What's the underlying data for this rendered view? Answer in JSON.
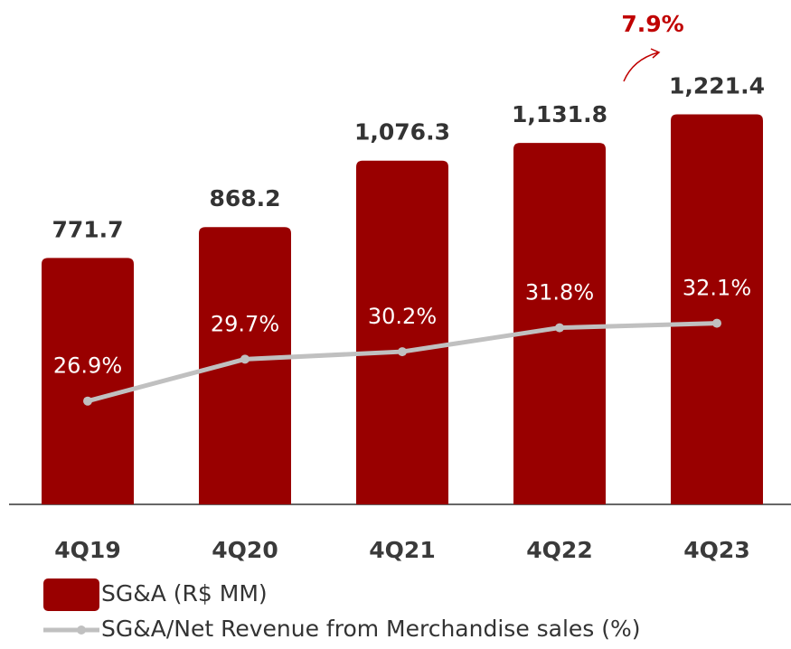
{
  "chart_data": {
    "type": "bar",
    "categories": [
      "4Q19",
      "4Q20",
      "4Q21",
      "4Q22",
      "4Q23"
    ],
    "series": [
      {
        "name": "SG&A (R$ MM)",
        "type": "bar",
        "color": "#990000",
        "values": [
          771.7,
          868.2,
          1076.3,
          1131.8,
          1221.4
        ],
        "value_labels": [
          "771.7",
          "868.2",
          "1,076.3",
          "1,131.8",
          "1,221.4"
        ]
      },
      {
        "name": "SG&A/Net Revenue from Merchandise sales (%)",
        "type": "line",
        "axis": "y2",
        "color": "#c0c0c0",
        "values": [
          26.9,
          29.7,
          30.2,
          31.8,
          32.1
        ],
        "value_labels": [
          "26.9%",
          "29.7%",
          "30.2%",
          "31.8%",
          "32.1%"
        ]
      }
    ],
    "ylim": [
      0,
      1500
    ],
    "y2lim": [
      20,
      52
    ],
    "annotation": "7.9%"
  }
}
